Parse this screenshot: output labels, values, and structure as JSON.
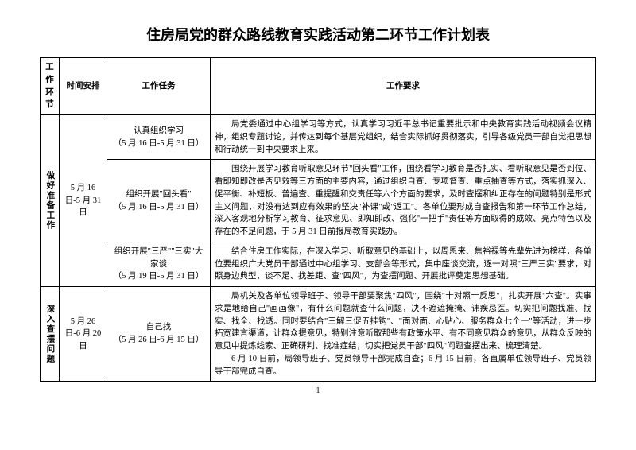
{
  "title": "住房局党的群众路线教育实践活动第二环节工作计划表",
  "headers": {
    "stage": "工作环节",
    "time": "时间安排",
    "task": "工作任务",
    "req": "工作要求"
  },
  "stage1": {
    "name": "做好准备工作",
    "time": "5 月 16 日-5 月 31 日",
    "rows": [
      {
        "task_l1": "认真组织学习",
        "task_l2": "（5 月 16 日-5 月 31 日）",
        "req": "局党委通过中心组学习等方式，认真学习习近平总书记重要批示和中央教育实践活动视频会议精神，组织专题讨论，并传达到每个基层党组织，结合实际抓好贯彻落实，引导各级党员干部自觉把思想和行动统一到中央要求上来。"
      },
      {
        "task_l1": "组织开展\"回头看\"",
        "task_l2": "（5 月 16 日-5 月 31 日）",
        "req": "围绕开展学习教育听取意见环节\"回头看\"工作，围绕看学习教育是否扎实、看听取意见是否到位、看即知即改是否见效等三方面的主要内容，通过组织自查、专项督查、重点抽查等方式，落实抓深入、促平衡、补短板、普遍查、重提醒和交责任等六个方面的要求，及时查摆和纠正存在的问题特别是形式主义问题，对没有达到应有效果的坚决\"补课\"或\"返工\"。各单位要形成自查报告和第一环节工作总结，深入客观地分析学习教育、征求意见、即知即改、强化\"一把手\"责任等方面取得的成效、亮点特色以及存在的不足问题，于 5 月 31 日前报局教育实践办。"
      },
      {
        "task_l1": "组织开展\"三严\"\"三实\"大家谈",
        "task_l2": "（5 月 19 日-5 月 31 日）",
        "req": "结合住房工作实际，在深入学习、听取意见的基础上，以周恩来、焦裕禄等先辈先进为榜样，各单位要组织广大党员干部通过中心组学习、支部会等形式，集中座谈交流，逐一对照\"三严三实\"要求，对照身边典型，谈不足、找差距、查\"四风\"，为查摆问题、开展批评奠定思想基础。"
      }
    ]
  },
  "stage2": {
    "name": "深入查摆问题",
    "time": "5 月 26 日-6 月 20 日",
    "rows": [
      {
        "task_l1": "自己找",
        "task_l2": "（5 月 26 日-6 月 15 日）",
        "req_p1": "局机关及各单位领导班子、领导干部要聚焦\"四风\"，围绕\"十对照十反思\"，扎实开展\"六查\"。实事求是地给自己\"画画像\"，有什么问题就查什么问题，决不遮遮掩掩、讳疾忌医。切实把问题找准、找实、找全、找透。同时要结合\"三解三促五挂钩\"、\"面对面、心贴心、服务群众七个一\"等活动，进一步拓宽建言渠道，让群众提意见，特别注意听取那些有政策水平、有不同意见群众的意见，从群众反映的意见中提炼线索、正确研判、找准症结，切实把党员干部\"四风\"问题查摆出来、梳理清楚。",
        "req_p2": "6 月 10 日前，局领导班子、党员领导干部完成自查；6 月 15 日前，各直属单位领导班子、党员领导干部完成自查。"
      }
    ]
  },
  "pagenum": "1"
}
